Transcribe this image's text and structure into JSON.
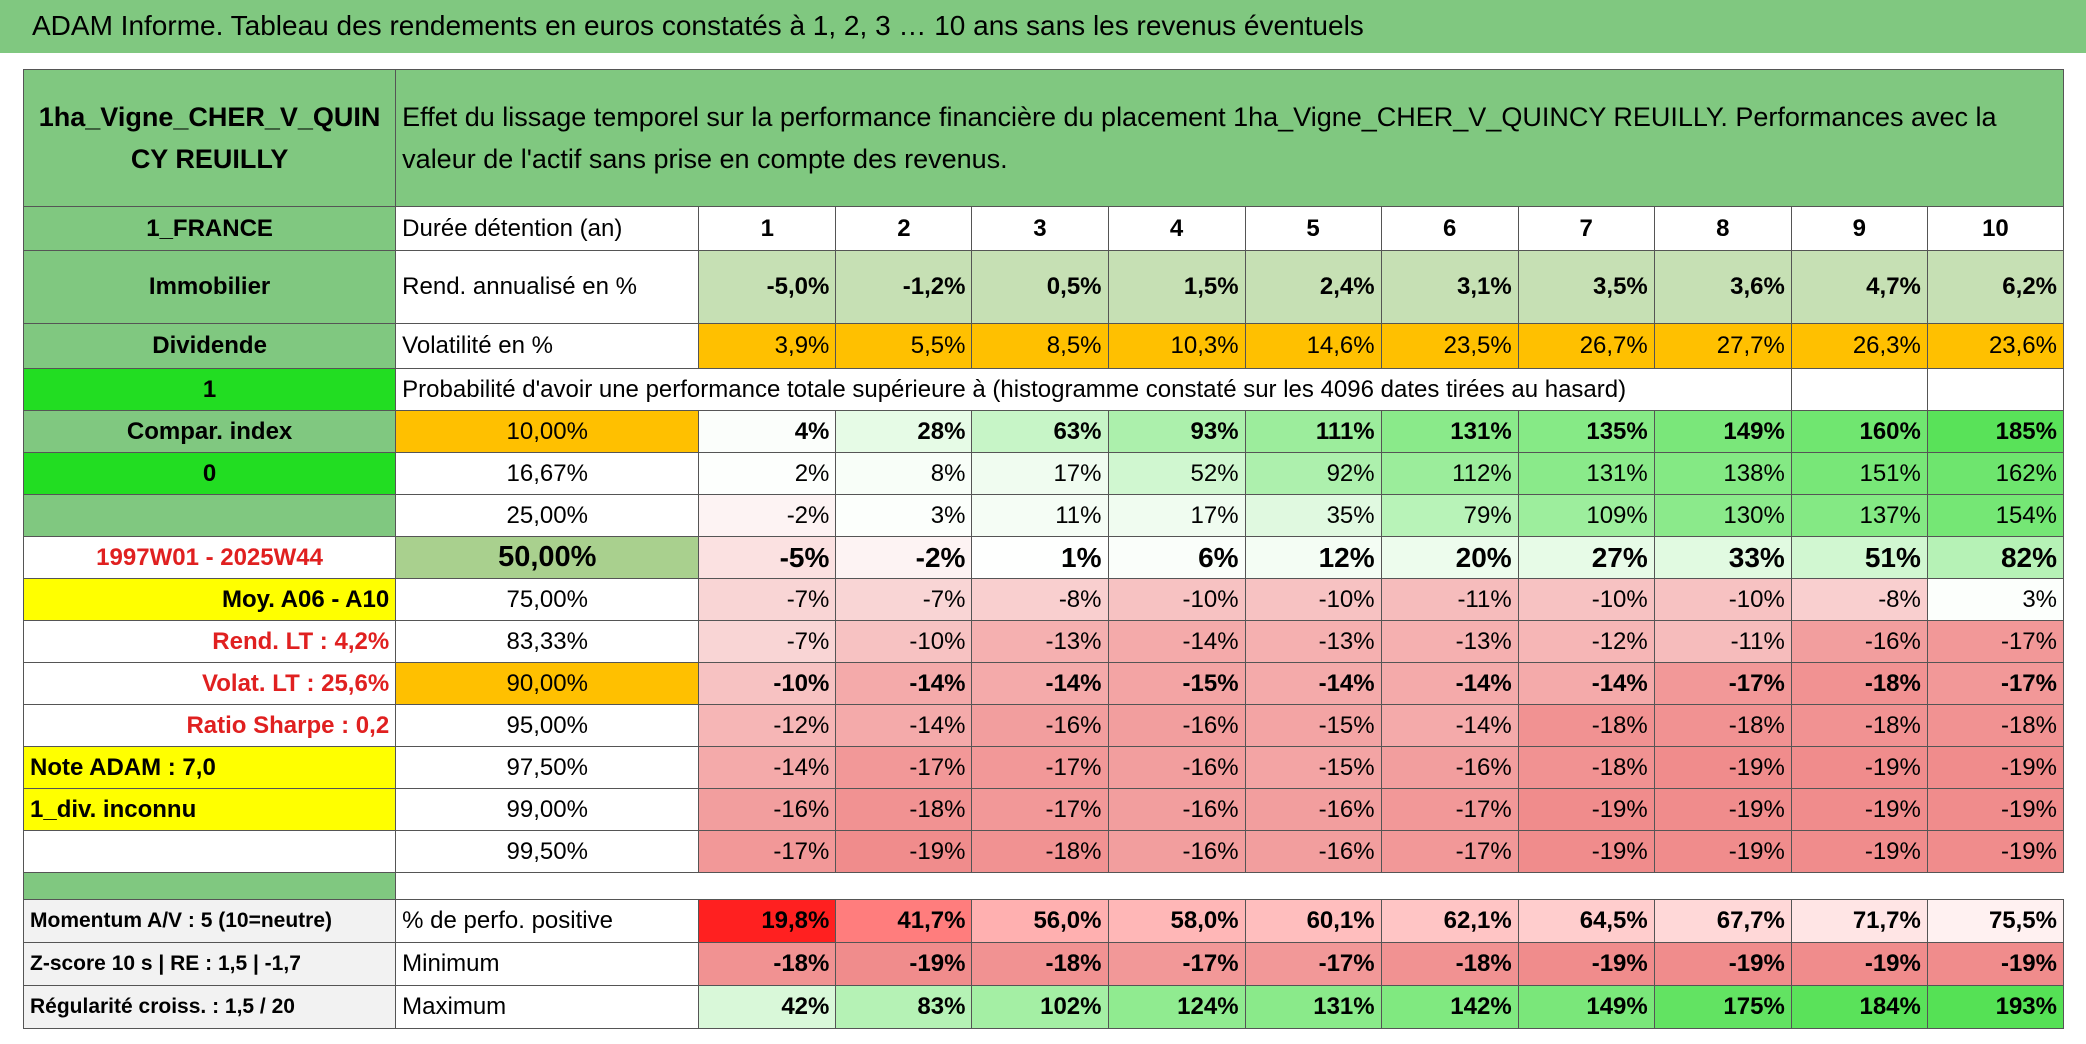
{
  "header": {
    "title": "ADAM Informe. Tableau des rendements en euros constatés à 1, 2, 3 … 10 ans sans les revenus éventuels"
  },
  "table": {
    "asset": "1ha_Vigne_CHER_V_QUINCY REUILLY",
    "description": "Effet du lissage temporel sur la performance financière du placement 1ha_Vigne_CHER_V_QUINCY REUILLY. Performances avec la valeur de l'actif sans prise en compte des revenus.",
    "rows": [
      [
        "1_FRANCE",
        "Durée détention (an)",
        "1",
        "2",
        "3",
        "4",
        "5",
        "6",
        "7",
        "8",
        "9",
        "10"
      ],
      [
        "Immobilier",
        "Rend. annualisé en %",
        "-5,0%",
        "-1,2%",
        "0,5%",
        "1,5%",
        "2,4%",
        "3,1%",
        "3,5%",
        "3,6%",
        "4,7%",
        "6,2%"
      ],
      [
        "Dividende",
        "Volatilité en %",
        "3,9%",
        "5,5%",
        "8,5%",
        "10,3%",
        "14,6%",
        "23,5%",
        "26,7%",
        "27,7%",
        "26,3%",
        "23,6%"
      ],
      [
        "1",
        "Probabilité d'avoir une performance totale supérieure à (histogramme constaté sur les 4096 dates tirées au hasard)",
        null,
        null
      ],
      [
        "Compar. index",
        "10,00%",
        "4%",
        "28%",
        "63%",
        "93%",
        "111%",
        "131%",
        "135%",
        "149%",
        "160%",
        "185%"
      ],
      [
        "0",
        "16,67%",
        "2%",
        "8%",
        "17%",
        "52%",
        "92%",
        "112%",
        "131%",
        "138%",
        "151%",
        "162%"
      ],
      [
        null,
        "25,00%",
        "-2%",
        "3%",
        "11%",
        "17%",
        "35%",
        "79%",
        "109%",
        "130%",
        "137%",
        "154%"
      ],
      [
        "1997W01 - 2025W44",
        "50,00%",
        "-5%",
        "-2%",
        "1%",
        "6%",
        "12%",
        "20%",
        "27%",
        "33%",
        "51%",
        "82%"
      ],
      [
        "Moy. A06 - A10",
        "75,00%",
        "-7%",
        "-7%",
        "-8%",
        "-10%",
        "-10%",
        "-11%",
        "-10%",
        "-10%",
        "-8%",
        "3%"
      ],
      [
        "Rend. LT :   4,2%",
        "83,33%",
        "-7%",
        "-10%",
        "-13%",
        "-14%",
        "-13%",
        "-13%",
        "-12%",
        "-11%",
        "-16%",
        "-17%"
      ],
      [
        "Volat. LT :   25,6%",
        "90,00%",
        "-10%",
        "-14%",
        "-14%",
        "-15%",
        "-14%",
        "-14%",
        "-14%",
        "-17%",
        "-18%",
        "-17%"
      ],
      [
        "Ratio Sharpe :    0,2",
        "95,00%",
        "-12%",
        "-14%",
        "-16%",
        "-16%",
        "-15%",
        "-14%",
        "-18%",
        "-18%",
        "-18%",
        "-18%"
      ],
      [
        "Note ADAM : 7,0",
        "97,50%",
        "-14%",
        "-17%",
        "-17%",
        "-16%",
        "-15%",
        "-16%",
        "-18%",
        "-19%",
        "-19%",
        "-19%"
      ],
      [
        "1_div. inconnu",
        "99,00%",
        "-16%",
        "-18%",
        "-17%",
        "-16%",
        "-16%",
        "-17%",
        "-19%",
        "-19%",
        "-19%",
        "-19%"
      ],
      [
        null,
        "99,50%",
        "-17%",
        "-19%",
        "-18%",
        "-16%",
        "-16%",
        "-17%",
        "-19%",
        "-19%",
        "-19%",
        "-19%"
      ],
      [
        "Momentum A/V : 5 (10=neutre)",
        "% de perfo. positive",
        "19,8%",
        "41,7%",
        "56,0%",
        "58,0%",
        "60,1%",
        "62,1%",
        "64,5%",
        "67,7%",
        "71,7%",
        "75,5%"
      ],
      [
        "Z-score 10 s | RE : 1,5 | -1,7",
        "Minimum",
        "-18%",
        "-19%",
        "-18%",
        "-17%",
        "-17%",
        "-18%",
        "-19%",
        "-19%",
        "-19%",
        "-19%"
      ],
      [
        "Régularité croiss. : 1,5 / 20",
        "Maximum",
        "42%",
        "83%",
        "102%",
        "124%",
        "131%",
        "142%",
        "149%",
        "175%",
        "184%",
        "193%"
      ]
    ]
  }
}
